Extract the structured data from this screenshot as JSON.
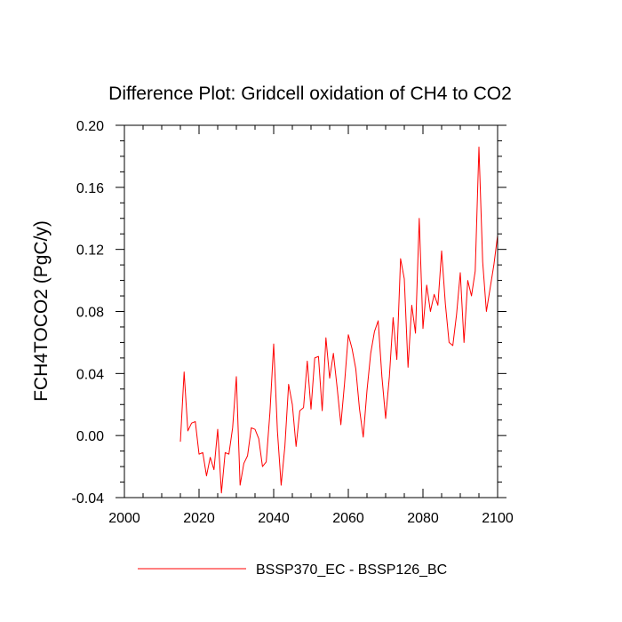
{
  "chart_data": {
    "type": "line",
    "title": "Difference Plot: Gridcell oxidation of CH4 to CO2",
    "xlabel": "",
    "ylabel": "FCH4TOCO2  (PgC/y)",
    "xlim": [
      2000,
      2100
    ],
    "ylim": [
      -0.04,
      0.2
    ],
    "x_ticks": [
      2000,
      2020,
      2040,
      2060,
      2080,
      2100
    ],
    "x_tick_labels": [
      "2000",
      "2020",
      "2040",
      "2060",
      "2080",
      "2100"
    ],
    "y_ticks": [
      -0.04,
      0.0,
      0.04,
      0.08,
      0.12,
      0.16,
      0.2
    ],
    "y_tick_labels": [
      "-0.04",
      "0.00",
      "0.04",
      "0.08",
      "0.12",
      "0.16",
      "0.20"
    ],
    "grid": false,
    "legend_position": "bottom-center",
    "series": [
      {
        "name": "BSSP370_EC - BSSP126_BC",
        "color": "#ff0000",
        "x": [
          2015,
          2016,
          2017,
          2018,
          2019,
          2020,
          2021,
          2022,
          2023,
          2024,
          2025,
          2026,
          2027,
          2028,
          2029,
          2030,
          2031,
          2032,
          2033,
          2034,
          2035,
          2036,
          2037,
          2038,
          2039,
          2040,
          2041,
          2042,
          2043,
          2044,
          2045,
          2046,
          2047,
          2048,
          2049,
          2050,
          2051,
          2052,
          2053,
          2054,
          2055,
          2056,
          2057,
          2058,
          2059,
          2060,
          2061,
          2062,
          2063,
          2064,
          2065,
          2066,
          2067,
          2068,
          2069,
          2070,
          2071,
          2072,
          2073,
          2074,
          2075,
          2076,
          2077,
          2078,
          2079,
          2080,
          2081,
          2082,
          2083,
          2084,
          2085,
          2086,
          2087,
          2088,
          2089,
          2090,
          2091,
          2092,
          2093,
          2094,
          2095,
          2096,
          2097,
          2098,
          2099,
          2100
        ],
        "values": [
          -0.004,
          0.041,
          0.003,
          0.008,
          0.009,
          -0.012,
          -0.011,
          -0.026,
          -0.014,
          -0.022,
          0.004,
          -0.037,
          -0.011,
          -0.012,
          0.005,
          0.038,
          -0.032,
          -0.018,
          -0.013,
          0.005,
          0.004,
          -0.002,
          -0.02,
          -0.017,
          0.015,
          0.059,
          0.003,
          -0.032,
          -0.007,
          0.033,
          0.02,
          -0.007,
          0.016,
          0.018,
          0.048,
          0.017,
          0.05,
          0.051,
          0.016,
          0.063,
          0.037,
          0.053,
          0.031,
          0.007,
          0.034,
          0.065,
          0.056,
          0.043,
          0.017,
          -0.001,
          0.029,
          0.053,
          0.067,
          0.074,
          0.038,
          0.011,
          0.038,
          0.076,
          0.049,
          0.114,
          0.101,
          0.044,
          0.084,
          0.066,
          0.14,
          0.069,
          0.097,
          0.08,
          0.091,
          0.084,
          0.119,
          0.085,
          0.06,
          0.058,
          0.078,
          0.105,
          0.06,
          0.1,
          0.09,
          0.106,
          0.186,
          0.112,
          0.08,
          0.095,
          0.11,
          0.129
        ]
      }
    ]
  }
}
